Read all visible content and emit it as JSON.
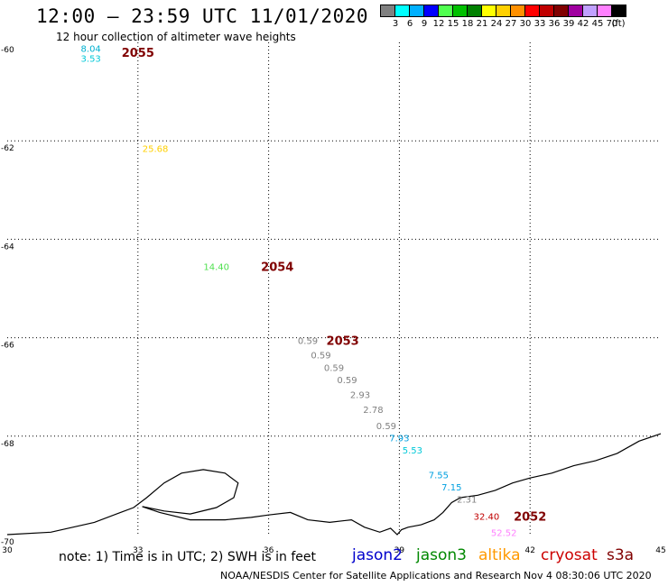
{
  "header": {
    "title": "12:00 – 23:59 UTC 11/01/2020",
    "subtitle": "12 hour collection of altimeter wave heights"
  },
  "legend": {
    "colors": [
      "#808080",
      "#00ffff",
      "#00b0ff",
      "#0000ff",
      "#50ff50",
      "#00c000",
      "#008000",
      "#ffff00",
      "#ffd000",
      "#ff9000",
      "#ff0000",
      "#c00000",
      "#800000",
      "#a000a0",
      "#c0a0ff",
      "#ff80ff",
      "#000000"
    ],
    "labels": [
      "3",
      "6",
      "9",
      "12",
      "15",
      "18",
      "21",
      "24",
      "27",
      "30",
      "33",
      "36",
      "39",
      "42",
      "45",
      "70",
      "(ft)"
    ]
  },
  "map": {
    "lon_min": 30,
    "lon_max": 45,
    "lat_min": -70,
    "lat_max": -60,
    "lon_ticks": [
      "30",
      "33",
      "36",
      "39",
      "42",
      "45"
    ],
    "lat_ticks": [
      "-60",
      "-62",
      "-64",
      "-66",
      "-68",
      "-70"
    ],
    "observations": [
      {
        "lon": 31.92,
        "lat": -60.12,
        "label": "8.04",
        "color": "#00b0d0"
      },
      {
        "lon": 31.92,
        "lat": -60.32,
        "label": "3.53",
        "color": "#00c8d8"
      },
      {
        "lon": 33.4,
        "lat": -62.15,
        "label": "25.68",
        "color": "#ffd000"
      },
      {
        "lon": 34.8,
        "lat": -64.55,
        "label": "14.40",
        "color": "#50e050"
      },
      {
        "lon": 36.9,
        "lat": -66.05,
        "label": "0.59",
        "color": "#808080"
      },
      {
        "lon": 37.2,
        "lat": -66.35,
        "label": "0.59",
        "color": "#808080"
      },
      {
        "lon": 37.5,
        "lat": -66.6,
        "label": "0.59",
        "color": "#808080"
      },
      {
        "lon": 37.8,
        "lat": -66.85,
        "label": "0.59",
        "color": "#808080"
      },
      {
        "lon": 38.1,
        "lat": -67.15,
        "label": "2.93",
        "color": "#808080"
      },
      {
        "lon": 38.4,
        "lat": -67.45,
        "label": "2.78",
        "color": "#808080"
      },
      {
        "lon": 38.7,
        "lat": -67.78,
        "label": "0.59",
        "color": "#808080"
      },
      {
        "lon": 39.0,
        "lat": -68.03,
        "label": "7.93",
        "color": "#00a0e0"
      },
      {
        "lon": 39.3,
        "lat": -68.28,
        "label": "5.53",
        "color": "#00c8d8"
      },
      {
        "lon": 39.9,
        "lat": -68.78,
        "label": "7.55",
        "color": "#00a0e0"
      },
      {
        "lon": 40.2,
        "lat": -69.03,
        "label": "7.15",
        "color": "#00a0e0"
      },
      {
        "lon": 40.55,
        "lat": -69.28,
        "label": "2.31",
        "color": "#808080"
      },
      {
        "lon": 41.0,
        "lat": -69.62,
        "label": "32.40",
        "color": "#c00000"
      },
      {
        "lon": 41.4,
        "lat": -69.95,
        "label": "52.52",
        "color": "#ff80ff"
      }
    ],
    "passes": [
      {
        "lon": 33.0,
        "lat": -60.2,
        "label": "2055",
        "color": "#800000"
      },
      {
        "lon": 36.2,
        "lat": -64.55,
        "label": "2054",
        "color": "#800000"
      },
      {
        "lon": 37.7,
        "lat": -66.05,
        "label": "2053",
        "color": "#800000"
      },
      {
        "lon": 42.0,
        "lat": -69.62,
        "label": "2052",
        "color": "#800000"
      }
    ],
    "coastline": [
      [
        30.0,
        -70.0
      ],
      [
        31.0,
        -69.95
      ],
      [
        32.0,
        -69.75
      ],
      [
        32.6,
        -69.55
      ],
      [
        32.9,
        -69.45
      ],
      [
        33.2,
        -69.25
      ],
      [
        33.6,
        -68.95
      ],
      [
        34.0,
        -68.75
      ],
      [
        34.5,
        -68.68
      ],
      [
        35.0,
        -68.75
      ],
      [
        35.3,
        -68.95
      ],
      [
        35.2,
        -69.25
      ],
      [
        34.8,
        -69.45
      ],
      [
        34.2,
        -69.58
      ],
      [
        33.6,
        -69.52
      ],
      [
        33.1,
        -69.43
      ],
      [
        33.5,
        -69.55
      ],
      [
        34.2,
        -69.7
      ],
      [
        35.0,
        -69.7
      ],
      [
        35.6,
        -69.65
      ],
      [
        36.0,
        -69.6
      ],
      [
        36.5,
        -69.55
      ],
      [
        36.9,
        -69.7
      ],
      [
        37.4,
        -69.75
      ],
      [
        37.9,
        -69.7
      ],
      [
        38.2,
        -69.85
      ],
      [
        38.55,
        -69.95
      ],
      [
        38.8,
        -69.87
      ],
      [
        38.95,
        -70.0
      ],
      [
        39.05,
        -69.9
      ],
      [
        39.2,
        -69.85
      ],
      [
        39.5,
        -69.8
      ],
      [
        39.8,
        -69.7
      ],
      [
        40.0,
        -69.55
      ],
      [
        40.2,
        -69.35
      ],
      [
        40.4,
        -69.25
      ],
      [
        40.8,
        -69.2
      ],
      [
        41.2,
        -69.1
      ],
      [
        41.6,
        -68.95
      ],
      [
        42.0,
        -68.85
      ],
      [
        42.5,
        -68.75
      ],
      [
        43.0,
        -68.6
      ],
      [
        43.5,
        -68.5
      ],
      [
        44.0,
        -68.35
      ],
      [
        44.5,
        -68.1
      ],
      [
        45.0,
        -67.95
      ]
    ]
  },
  "footer": {
    "note": "note:  1) Time is in UTC;  2) SWH is in feet",
    "satellites": [
      {
        "name": "jason2",
        "color": "#0000cc"
      },
      {
        "name": "jason3",
        "color": "#008800"
      },
      {
        "name": "altika",
        "color": "#ff9900"
      },
      {
        "name": "cryosat",
        "color": "#cc0000"
      },
      {
        "name": "s3a",
        "color": "#800000"
      }
    ],
    "credit": "NOAA/NESDIS Center for Satellite Applications and Research",
    "timestamp": "Nov  4 08:30:06 UTC 2020"
  }
}
